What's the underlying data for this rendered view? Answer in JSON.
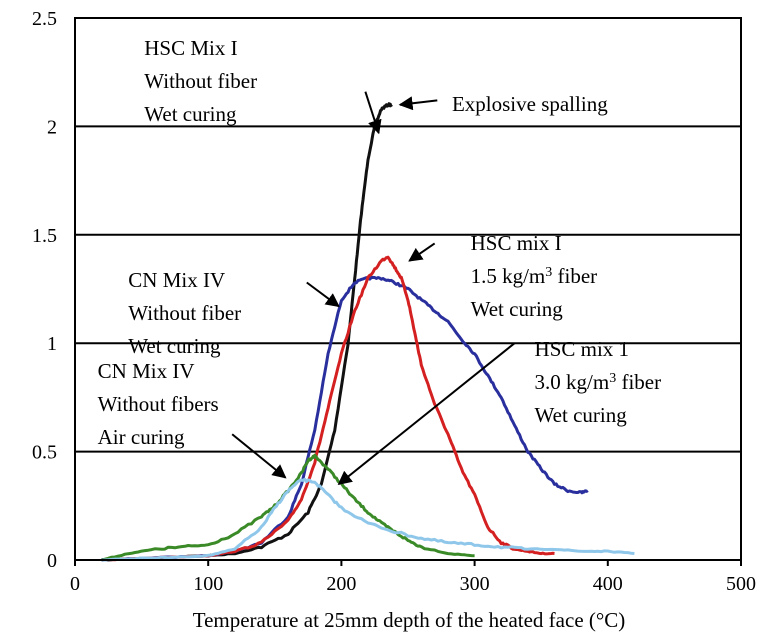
{
  "chart_data": {
    "type": "line",
    "title": "",
    "xlabel": "Temperature at 25mm depth of the heated face (°C)",
    "ylabel": "",
    "xlim": [
      0,
      500
    ],
    "ylim": [
      0,
      2.5
    ],
    "x_ticks": [
      0,
      100,
      200,
      300,
      400,
      500
    ],
    "y_ticks": [
      0,
      0.5,
      1,
      1.5,
      2,
      2.5
    ],
    "x_tick_labels": [
      "0",
      "100",
      "200",
      "300",
      "400",
      "500"
    ],
    "y_tick_labels": [
      "0",
      "0.5",
      "1",
      "1.5",
      "2",
      "2.5"
    ],
    "grid": "horizontal",
    "legend": "none",
    "series": [
      {
        "color": "#111111",
        "x": [
          20,
          60,
          100,
          120,
          140,
          160,
          175,
          185,
          195,
          205,
          210,
          215,
          220,
          225,
          230,
          235,
          238
        ],
        "y": [
          0,
          0.01,
          0.02,
          0.03,
          0.06,
          0.12,
          0.22,
          0.35,
          0.6,
          1.0,
          1.3,
          1.6,
          1.85,
          2.0,
          2.08,
          2.1,
          2.1
        ]
      },
      {
        "color": "#2a2f9e",
        "x": [
          20,
          60,
          100,
          120,
          140,
          160,
          170,
          180,
          190,
          200,
          210,
          220,
          230,
          240,
          250,
          260,
          270,
          280,
          290,
          300,
          310,
          320,
          330,
          340,
          350,
          360,
          370,
          380,
          385
        ],
        "y": [
          0,
          0.01,
          0.02,
          0.04,
          0.08,
          0.2,
          0.35,
          0.6,
          0.95,
          1.2,
          1.28,
          1.3,
          1.3,
          1.28,
          1.25,
          1.2,
          1.15,
          1.1,
          1.02,
          0.95,
          0.85,
          0.75,
          0.62,
          0.5,
          0.42,
          0.35,
          0.32,
          0.31,
          0.32
        ]
      },
      {
        "color": "#d42020",
        "x": [
          20,
          60,
          100,
          120,
          140,
          160,
          170,
          180,
          190,
          200,
          210,
          220,
          230,
          235,
          240,
          245,
          250,
          255,
          260,
          270,
          280,
          290,
          300,
          310,
          320,
          330,
          340,
          350,
          360
        ],
        "y": [
          0,
          0.01,
          0.02,
          0.04,
          0.08,
          0.18,
          0.28,
          0.45,
          0.7,
          0.95,
          1.15,
          1.3,
          1.38,
          1.4,
          1.35,
          1.3,
          1.2,
          1.05,
          0.9,
          0.72,
          0.58,
          0.42,
          0.3,
          0.15,
          0.08,
          0.05,
          0.04,
          0.03,
          0.03
        ]
      },
      {
        "color": "#3a8a28",
        "x": [
          20,
          40,
          60,
          80,
          100,
          120,
          140,
          150,
          160,
          170,
          175,
          180,
          190,
          200,
          210,
          220,
          230,
          240,
          250,
          260,
          280,
          300
        ],
        "y": [
          0,
          0.03,
          0.05,
          0.06,
          0.07,
          0.12,
          0.2,
          0.25,
          0.32,
          0.4,
          0.46,
          0.48,
          0.42,
          0.35,
          0.28,
          0.22,
          0.17,
          0.13,
          0.09,
          0.06,
          0.03,
          0.02
        ]
      },
      {
        "color": "#8fc7ea",
        "x": [
          20,
          60,
          100,
          120,
          140,
          150,
          160,
          170,
          180,
          190,
          200,
          220,
          240,
          260,
          280,
          300,
          320,
          340,
          360,
          380,
          400,
          420
        ],
        "y": [
          0,
          0.01,
          0.02,
          0.05,
          0.15,
          0.24,
          0.32,
          0.37,
          0.36,
          0.3,
          0.24,
          0.17,
          0.13,
          0.1,
          0.08,
          0.07,
          0.06,
          0.05,
          0.05,
          0.04,
          0.04,
          0.03
        ]
      }
    ],
    "annotations": [
      {
        "lines": [
          "HSC Mix I",
          "Without fiber",
          "Wet curing"
        ],
        "text_pos": [
          52,
          2.33
        ],
        "arrow_from": [
          218,
          2.16
        ],
        "arrow_to": [
          228,
          1.97
        ]
      },
      {
        "lines": [
          "Explosive spalling"
        ],
        "text_pos": [
          283,
          2.07
        ],
        "arrow_from": [
          272,
          2.12
        ],
        "arrow_to": [
          244,
          2.1
        ]
      },
      {
        "lines": [
          "HSC mix I",
          "1.5 kg/m³ fiber",
          "Wet curing"
        ],
        "text_pos": [
          297,
          1.43
        ],
        "arrow_from": [
          270,
          1.46
        ],
        "arrow_to": [
          251,
          1.38
        ]
      },
      {
        "lines": [
          "CN Mix IV",
          "Without fiber",
          "Wet curing"
        ],
        "text_pos": [
          40,
          1.26
        ],
        "arrow_from": [
          174,
          1.28
        ],
        "arrow_to": [
          198,
          1.17
        ]
      },
      {
        "lines": [
          "HSC mix 1",
          "3.0 kg/m³ fiber",
          "Wet curing"
        ],
        "text_pos": [
          345,
          0.94
        ],
        "arrow_from": [
          330,
          1.0
        ],
        "arrow_to": [
          198,
          0.35
        ]
      },
      {
        "lines": [
          "CN Mix IV",
          "Without fibers",
          "Air curing"
        ],
        "text_pos": [
          17,
          0.84
        ],
        "arrow_from": [
          118,
          0.58
        ],
        "arrow_to": [
          158,
          0.38
        ]
      }
    ]
  }
}
